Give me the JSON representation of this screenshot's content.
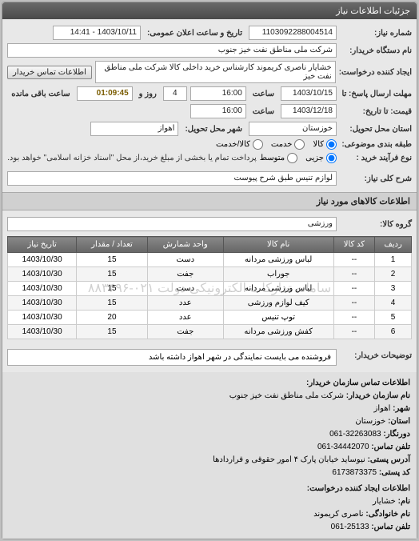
{
  "panel_title": "جزئیات اطلاعات نیاز",
  "header": {
    "req_no_label": "شماره نیاز:",
    "req_no": "1103092288004514",
    "announce_label": "تاریخ و ساعت اعلان عمومی:",
    "announce": "1403/10/11 - 14:41",
    "buyer_device_label": "نام دستگاه خریدار:",
    "buyer_device": "شرکت ملی مناطق نفت خیز جنوب",
    "creator_label": "ایجاد کننده درخواست:",
    "creator": "خشایار ناصری کریموند کارشناس خرید داخلی کالا  شرکت ملی مناطق نفت خیز",
    "contact_btn": "اطلاعات تماس خریدار",
    "deadline_label": "مهلت ارسال پاسخ: تا",
    "deadline_date": "1403/10/15",
    "time_label": "ساعت",
    "deadline_time": "16:00",
    "days_label": "روز و",
    "days": "4",
    "remain_label": "ساعت باقی مانده",
    "remain": "01:09:45",
    "price_until_label": "قیمت: تا تاریخ:",
    "price_date": "1403/12/18",
    "price_time": "16:00",
    "province_label": "استان محل تحویل:",
    "province": "خوزستان",
    "city_label": "شهر محل تحویل:",
    "city": "اهواز",
    "subject_group_label": "طبقه بندی موضوعی:",
    "opt_kala": "کالا",
    "opt_service": "خدمت",
    "opt_kala_service": "کالا/خدمت",
    "buy_type_label": "نوع فرآیند خرید :",
    "opt_small": "جزیی",
    "opt_medium": "متوسط",
    "buy_note": "پرداخت تمام یا بخشی از مبلغ خرید،از محل \"اسناد خزانه اسلامی\" خواهد بود."
  },
  "need": {
    "title_label": "شرح کلی نیاز:",
    "title": "لوازم تنیس طبق شرح پیوست"
  },
  "goods_section": "اطلاعات کالاهای مورد نیاز",
  "group_label": "گروه کالا:",
  "group": "ورزشی",
  "table": {
    "headers": [
      "ردیف",
      "کد کالا",
      "نام کالا",
      "واحد شمارش",
      "تعداد / مقدار",
      "تاریخ نیاز"
    ],
    "rows": [
      [
        "1",
        "--",
        "لباس ورزشی مردانه",
        "دست",
        "15",
        "1403/10/30"
      ],
      [
        "2",
        "--",
        "جوراب",
        "جفت",
        "15",
        "1403/10/30"
      ],
      [
        "3",
        "--",
        "لباس ورزشی مردانه",
        "دست",
        "15",
        "1403/10/30"
      ],
      [
        "4",
        "--",
        "کیف لوازم ورزشی",
        "عدد",
        "15",
        "1403/10/30"
      ],
      [
        "5",
        "--",
        "توپ تنیس",
        "عدد",
        "20",
        "1403/10/30"
      ],
      [
        "6",
        "--",
        "کفش ورزشی مردانه",
        "جفت",
        "15",
        "1403/10/30"
      ]
    ],
    "watermark": "سامانه تدارکات الکترونیکی دولت ۰۲۱-۸۸۳۴۹۶"
  },
  "buyer_note_label": "توضیحات خریدار:",
  "buyer_note": "فروشنده می بایست نمایندگی در شهر اهواز داشته باشد",
  "contact": {
    "title": "اطلاعات تماس سازمان خریدار:",
    "org_label": "نام سازمان خریدار:",
    "org": "شرکت ملی مناطق نفت خیز جنوب",
    "city_label": "شهر:",
    "city": "اهواز",
    "province_label": "استان:",
    "province": "خوزستان",
    "fax_label": "دورنگار:",
    "fax": "32263083-061",
    "phone_label": "تلفن تماس:",
    "phone": "34442070-061",
    "addr_label": "آدرس پستی:",
    "addr": "نیوساید خیابان پارک ۴ امور حقوقی و قراردادها",
    "postal_label": "کد پستی:",
    "postal": "6173873375",
    "creator_title": "اطلاعات ایجاد کننده درخواست:",
    "name_label": "نام:",
    "name": "خشایار",
    "family_label": "نام خانوادگی:",
    "family": "ناصری کریموند",
    "cphone_label": "تلفن تماس:",
    "cphone": "25133-061"
  }
}
